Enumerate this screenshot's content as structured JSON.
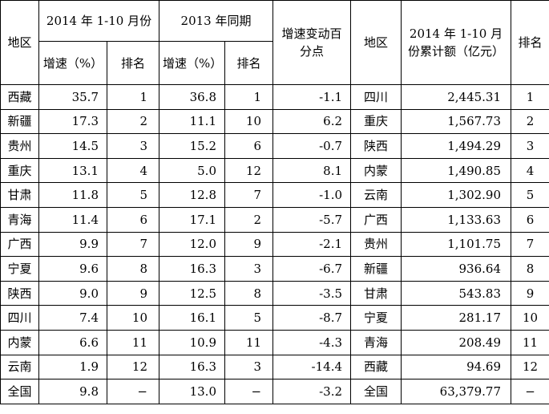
{
  "table": {
    "header": [
      [
        "地区",
        "2014 年 1-10 月份",
        "2013 年同期",
        "增速变动百分点",
        "地区",
        "2014 年 1-10 月份累计额（亿元）",
        "排名"
      ],
      [
        "增速（%）",
        "排名",
        "增速（%）",
        "排名"
      ]
    ],
    "rows": [
      [
        "西藏",
        "35.7",
        "1",
        "36.8",
        "1",
        "-1.1",
        "四川",
        "2,445.31",
        "1"
      ],
      [
        "新疆",
        "17.3",
        "2",
        "11.1",
        "10",
        "6.2",
        "重庆",
        "1,567.73",
        "2"
      ],
      [
        "贵州",
        "14.5",
        "3",
        "15.2",
        "6",
        "-0.7",
        "陕西",
        "1,494.29",
        "3"
      ],
      [
        "重庆",
        "13.1",
        "4",
        "5.0",
        "12",
        "8.1",
        "内蒙",
        "1,490.85",
        "4"
      ],
      [
        "甘肃",
        "11.8",
        "5",
        "12.8",
        "7",
        "-1.0",
        "云南",
        "1,302.90",
        "5"
      ],
      [
        "青海",
        "11.4",
        "6",
        "17.1",
        "2",
        "-5.7",
        "广西",
        "1,133.63",
        "6"
      ],
      [
        "广西",
        "9.9",
        "7",
        "12.0",
        "9",
        "-2.1",
        "贵州",
        "1,101.75",
        "7"
      ],
      [
        "宁夏",
        "9.6",
        "8",
        "16.3",
        "3",
        "-6.7",
        "新疆",
        "936.64",
        "8"
      ],
      [
        "陕西",
        "9.0",
        "9",
        "12.5",
        "8",
        "-3.5",
        "甘肃",
        "543.83",
        "9"
      ],
      [
        "四川",
        "7.4",
        "10",
        "16.1",
        "5",
        "-8.7",
        "宁夏",
        "281.17",
        "10"
      ],
      [
        "内蒙",
        "6.6",
        "11",
        "10.9",
        "11",
        "-4.3",
        "青海",
        "208.49",
        "11"
      ],
      [
        "云南",
        "1.9",
        "12",
        "16.3",
        "3",
        "-14.4",
        "西藏",
        "94.69",
        "12"
      ],
      [
        "全国",
        "9.8",
        "−",
        "13.0",
        "−",
        "-3.2",
        "全国",
        "63,379.77",
        "−"
      ]
    ]
  }
}
